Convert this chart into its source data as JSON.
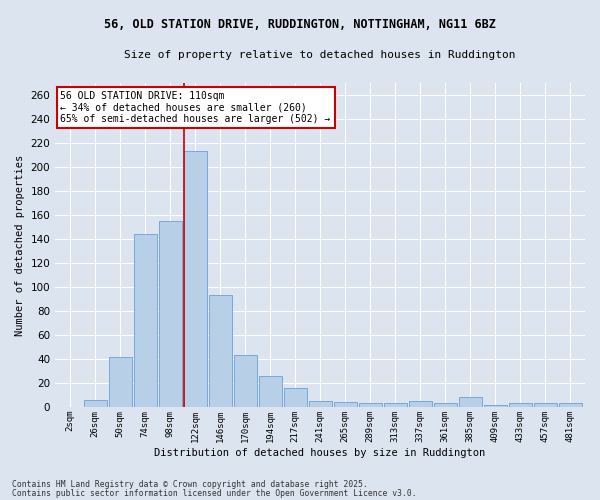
{
  "title_line1": "56, OLD STATION DRIVE, RUDDINGTON, NOTTINGHAM, NG11 6BZ",
  "title_line2": "Size of property relative to detached houses in Ruddington",
  "xlabel": "Distribution of detached houses by size in Ruddington",
  "ylabel": "Number of detached properties",
  "bar_color": "#b8cfe8",
  "bar_edge_color": "#6a9fd8",
  "bg_color": "#dce4f0",
  "categories": [
    "2sqm",
    "26sqm",
    "50sqm",
    "74sqm",
    "98sqm",
    "122sqm",
    "146sqm",
    "170sqm",
    "194sqm",
    "217sqm",
    "241sqm",
    "265sqm",
    "289sqm",
    "313sqm",
    "337sqm",
    "361sqm",
    "385sqm",
    "409sqm",
    "433sqm",
    "457sqm",
    "481sqm"
  ],
  "bar_heights": [
    0,
    6,
    42,
    144,
    155,
    213,
    93,
    43,
    26,
    16,
    5,
    4,
    3,
    3,
    5,
    3,
    8,
    2,
    3,
    3,
    3
  ],
  "annotation_title": "56 OLD STATION DRIVE: 110sqm",
  "annotation_line2": "← 34% of detached houses are smaller (260)",
  "annotation_line3": "65% of semi-detached houses are larger (502) →",
  "annotation_box_color": "#ffffff",
  "annotation_border_color": "#cc0000",
  "vline_x_index": 4.5,
  "ylim": [
    0,
    270
  ],
  "yticks": [
    0,
    20,
    40,
    60,
    80,
    100,
    120,
    140,
    160,
    180,
    200,
    220,
    240,
    260
  ],
  "footer_line1": "Contains HM Land Registry data © Crown copyright and database right 2025.",
  "footer_line2": "Contains public sector information licensed under the Open Government Licence v3.0."
}
